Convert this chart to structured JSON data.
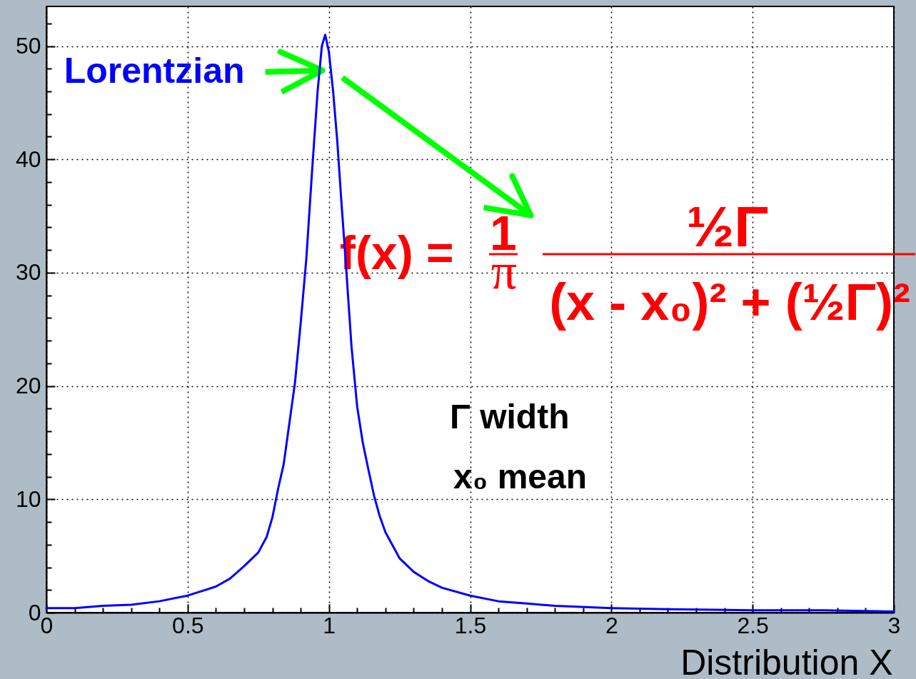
{
  "chart_data": {
    "type": "line",
    "xlabel": "Distribution X",
    "x": [
      0,
      0.1,
      0.2,
      0.3,
      0.4,
      0.5,
      0.55,
      0.6,
      0.65,
      0.7,
      0.75,
      0.78,
      0.8,
      0.82,
      0.84,
      0.86,
      0.88,
      0.9,
      0.92,
      0.94,
      0.96,
      0.975,
      0.987,
      1.0,
      1.015,
      1.03,
      1.045,
      1.06,
      1.08,
      1.1,
      1.12,
      1.14,
      1.16,
      1.18,
      1.2,
      1.25,
      1.3,
      1.35,
      1.4,
      1.5,
      1.6,
      1.7,
      1.8,
      2.0,
      2.2,
      2.5,
      2.75,
      3.0
    ],
    "series": [
      {
        "name": "Lorentzian",
        "color": "#0000ff",
        "values": [
          0.4,
          0.4,
          0.6,
          0.7,
          1.0,
          1.5,
          1.9,
          2.3,
          3.0,
          4.1,
          5.3,
          6.7,
          8.4,
          10.9,
          13.1,
          16.7,
          20.3,
          25.5,
          31.2,
          38.8,
          46.0,
          50.0,
          51.0,
          49.5,
          46.0,
          41.5,
          36.0,
          30.8,
          23.5,
          18.2,
          15.0,
          12.6,
          10.3,
          8.5,
          7.1,
          4.8,
          3.6,
          2.8,
          2.2,
          1.5,
          1.0,
          0.8,
          0.6,
          0.4,
          0.3,
          0.2,
          0.2,
          0.1
        ]
      }
    ],
    "xlim": [
      0,
      3
    ],
    "ylim": [
      0,
      53.5
    ],
    "xticks": [
      0,
      {
        "value": 0.1,
        "label": null
      },
      {
        "value": 0.2,
        "label": null
      },
      {
        "value": 0.3,
        "label": null
      },
      {
        "value": 0.4,
        "label": null
      },
      0.5,
      {
        "value": 0.6,
        "label": null
      },
      {
        "value": 0.7,
        "label": null
      },
      {
        "value": 0.8,
        "label": null
      },
      {
        "value": 0.9,
        "label": null
      },
      1,
      {
        "value": 1.1,
        "label": null
      },
      {
        "value": 1.2,
        "label": null
      },
      {
        "value": 1.3,
        "label": null
      },
      {
        "value": 1.4,
        "label": null
      },
      1.5,
      {
        "value": 1.6,
        "label": null
      },
      {
        "value": 1.7,
        "label": null
      },
      {
        "value": 1.8,
        "label": null
      },
      {
        "value": 1.9,
        "label": null
      },
      2,
      {
        "value": 2.1,
        "label": null
      },
      {
        "value": 2.2,
        "label": null
      },
      {
        "value": 2.3,
        "label": null
      },
      {
        "value": 2.4,
        "label": null
      },
      2.5,
      {
        "value": 2.6,
        "label": null
      },
      {
        "value": 2.7,
        "label": null
      },
      {
        "value": 2.8,
        "label": null
      },
      {
        "value": 2.9,
        "label": null
      },
      3
    ],
    "yticks": [
      0,
      {
        "value": 2,
        "label": null
      },
      {
        "value": 4,
        "label": null
      },
      {
        "value": 6,
        "label": null
      },
      {
        "value": 8,
        "label": null
      },
      10,
      {
        "value": 12,
        "label": null
      },
      {
        "value": 14,
        "label": null
      },
      {
        "value": 16,
        "label": null
      },
      {
        "value": 18,
        "label": null
      },
      20,
      {
        "value": 22,
        "label": null
      },
      {
        "value": 24,
        "label": null
      },
      {
        "value": 26,
        "label": null
      },
      {
        "value": 28,
        "label": null
      },
      30,
      {
        "value": 32,
        "label": null
      },
      {
        "value": 34,
        "label": null
      },
      {
        "value": 36,
        "label": null
      },
      {
        "value": 38,
        "label": null
      },
      40,
      {
        "value": 42,
        "label": null
      },
      {
        "value": 44,
        "label": null
      },
      {
        "value": 46,
        "label": null
      },
      {
        "value": 48,
        "label": null
      },
      50,
      {
        "value": 52,
        "label": null
      }
    ],
    "grid": true,
    "line_style": "solid",
    "annotations": [
      "f(x) =",
      "1",
      "π",
      "½Γ",
      "(x - x₀)² + (½Γ)²",
      "Γ width",
      "x₀ mean"
    ]
  }
}
